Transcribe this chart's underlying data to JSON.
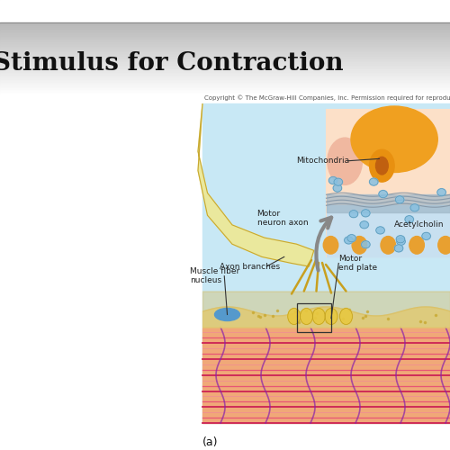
{
  "title_text": "imulus for Contraction",
  "title_fontsize": 20,
  "title_fontweight": "bold",
  "title_color": "#111111",
  "copyright_text": "Copyright © The McGraw-Hill Companies, Inc. Permission required for reprodu...",
  "copyright_fontsize": 5.0,
  "label_a": "(a)",
  "bg_color": "#e8e8e8",
  "diagram_bg": "#c8e8f5",
  "stripe_bg": "#f5b090",
  "stripe_dark": "#cc3366",
  "stripe_mid": "#e8607a",
  "stripe_light": "#f8a0b0",
  "stripe_zline": "#9933aa",
  "skin_color": "#e8d090",
  "nucleus_color": "#5599cc",
  "axon_color": "#f0e080",
  "axon_edge": "#c8a830",
  "inset_bg": "#fce8d0",
  "inset_edge": "#cc8844",
  "mito_color": "#e89010",
  "mito_dark": "#c06010",
  "vesicle_color": "#90c8e8",
  "gray_arrow": "#999999",
  "label_fontsize": 6.5,
  "label_color": "#222222"
}
